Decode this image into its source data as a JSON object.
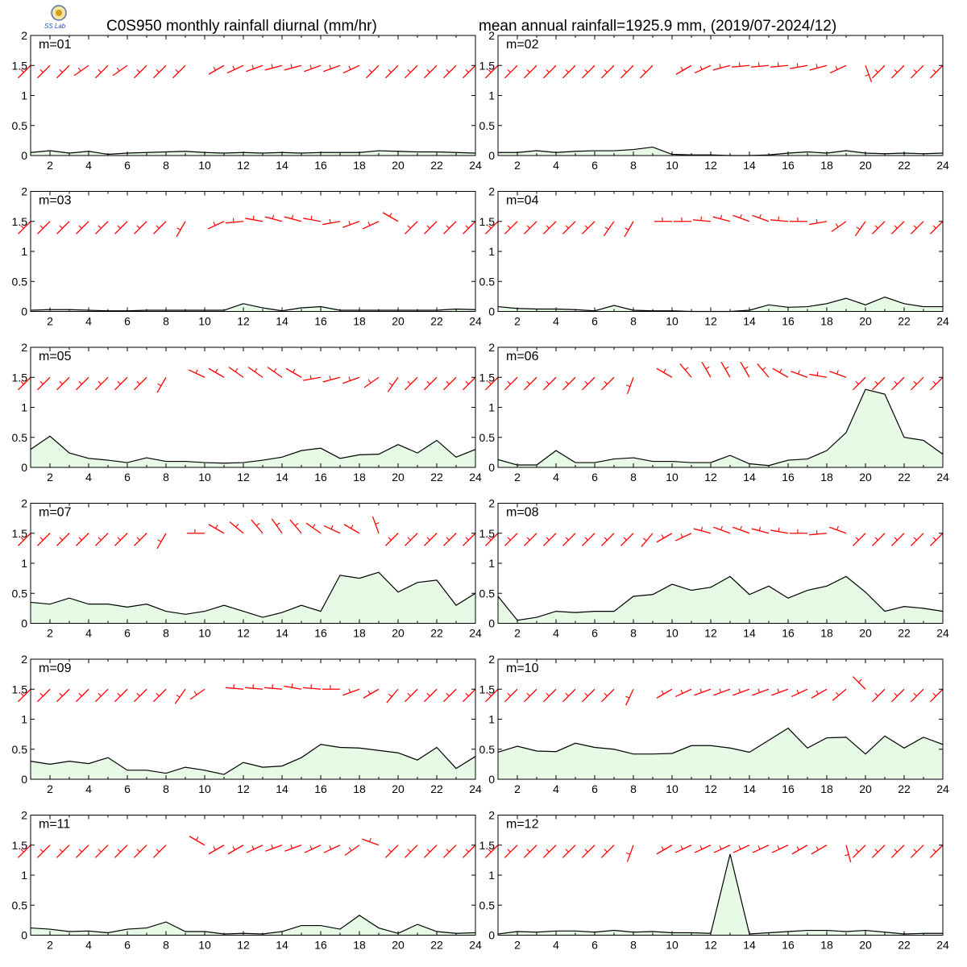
{
  "header": {
    "title_left": "C0S950 monthly rainfall diurnal (mm/hr)",
    "title_right": "mean annual rainfall=1925.9 mm, (2019/07-2024/12)"
  },
  "logo": {
    "text": "SS Lab"
  },
  "colors": {
    "fill": "#e6fae6",
    "line": "#000000",
    "barb": "#ff0000"
  },
  "chart_data": {
    "type": "area",
    "ylim": [
      0,
      2
    ],
    "xlim": [
      1,
      24
    ],
    "yticks": [
      "0",
      "0.5",
      "1",
      "1.5",
      "2"
    ],
    "xticks": [
      "2",
      "4",
      "6",
      "8",
      "10",
      "12",
      "14",
      "16",
      "18",
      "20",
      "22",
      "24"
    ],
    "barb_level": 1.5,
    "panels": [
      {
        "label": "m=01",
        "values": [
          0.05,
          0.08,
          0.04,
          0.07,
          0.02,
          0.04,
          0.05,
          0.06,
          0.07,
          0.05,
          0.04,
          0.05,
          0.04,
          0.05,
          0.04,
          0.05,
          0.05,
          0.05,
          0.08,
          0.07,
          0.06,
          0.06,
          0.05,
          0.04
        ],
        "wind_dir": [
          225,
          225,
          225,
          235,
          225,
          235,
          225,
          225,
          225,
          null,
          240,
          245,
          250,
          255,
          255,
          250,
          250,
          245,
          225,
          225,
          225,
          225,
          225,
          225
        ]
      },
      {
        "label": "m=02",
        "values": [
          0.05,
          0.05,
          0.08,
          0.05,
          0.07,
          0.08,
          0.08,
          0.1,
          0.14,
          0.02,
          0.01,
          0.01,
          0.0,
          0.0,
          0.01,
          0.04,
          0.06,
          0.04,
          0.08,
          0.04,
          0.03,
          0.04,
          0.03,
          0.04
        ],
        "wind_dir": [
          225,
          225,
          225,
          225,
          225,
          225,
          225,
          225,
          225,
          null,
          240,
          245,
          255,
          265,
          265,
          265,
          260,
          255,
          245,
          160,
          225,
          225,
          225,
          225
        ]
      },
      {
        "label": "m=03",
        "values": [
          0.02,
          0.03,
          0.03,
          0.02,
          0.01,
          0.01,
          0.02,
          0.02,
          0.02,
          0.02,
          0.02,
          0.13,
          0.06,
          0.01,
          0.06,
          0.08,
          0.02,
          0.02,
          0.02,
          0.02,
          0.02,
          0.02,
          0.04,
          0.03
        ],
        "wind_dir": [
          225,
          225,
          225,
          225,
          225,
          225,
          225,
          225,
          210,
          null,
          245,
          265,
          280,
          285,
          285,
          280,
          260,
          250,
          245,
          300,
          225,
          225,
          225,
          225
        ]
      },
      {
        "label": "m=04",
        "values": [
          0.08,
          0.05,
          0.04,
          0.04,
          0.03,
          0.01,
          0.1,
          0.02,
          0.01,
          0.01,
          0.0,
          0.0,
          0.0,
          0.02,
          0.11,
          0.07,
          0.08,
          0.13,
          0.22,
          0.11,
          0.24,
          0.13,
          0.08,
          0.08
        ],
        "wind_dir": [
          225,
          225,
          225,
          225,
          225,
          225,
          215,
          210,
          null,
          270,
          270,
          275,
          285,
          290,
          290,
          275,
          270,
          260,
          235,
          215,
          225,
          225,
          225,
          225
        ]
      },
      {
        "label": "m=05",
        "values": [
          0.3,
          0.52,
          0.24,
          0.15,
          0.12,
          0.08,
          0.16,
          0.1,
          0.1,
          0.08,
          0.07,
          0.08,
          0.12,
          0.17,
          0.28,
          0.32,
          0.15,
          0.21,
          0.22,
          0.38,
          0.24,
          0.45,
          0.17,
          0.3
        ],
        "wind_dir": [
          225,
          225,
          225,
          225,
          225,
          225,
          225,
          210,
          null,
          295,
          300,
          305,
          305,
          305,
          300,
          260,
          255,
          250,
          235,
          215,
          225,
          225,
          225,
          225
        ]
      },
      {
        "label": "m=06",
        "values": [
          0.13,
          0.04,
          0.04,
          0.28,
          0.08,
          0.08,
          0.14,
          0.16,
          0.1,
          0.1,
          0.08,
          0.08,
          0.2,
          0.06,
          0.03,
          0.12,
          0.14,
          0.28,
          0.58,
          1.3,
          1.22,
          0.5,
          0.45,
          0.22
        ],
        "wind_dir": [
          225,
          225,
          225,
          225,
          225,
          225,
          225,
          200,
          null,
          300,
          320,
          330,
          330,
          330,
          320,
          300,
          290,
          280,
          290,
          225,
          225,
          225,
          225,
          225
        ]
      },
      {
        "label": "m=07",
        "values": [
          0.35,
          0.32,
          0.42,
          0.32,
          0.32,
          0.27,
          0.32,
          0.2,
          0.15,
          0.2,
          0.3,
          0.2,
          0.1,
          0.18,
          0.3,
          0.2,
          0.8,
          0.75,
          0.85,
          0.52,
          0.68,
          0.72,
          0.3,
          0.5
        ],
        "wind_dir": [
          225,
          225,
          225,
          225,
          225,
          225,
          225,
          210,
          null,
          270,
          300,
          310,
          320,
          325,
          320,
          305,
          295,
          300,
          340,
          225,
          225,
          225,
          225,
          225
        ]
      },
      {
        "label": "m=08",
        "values": [
          0.45,
          0.05,
          0.1,
          0.2,
          0.18,
          0.2,
          0.2,
          0.45,
          0.48,
          0.65,
          0.55,
          0.6,
          0.78,
          0.48,
          0.62,
          0.42,
          0.55,
          0.62,
          0.78,
          0.52,
          0.2,
          0.28,
          0.25,
          0.2
        ],
        "wind_dir": [
          225,
          225,
          225,
          225,
          225,
          225,
          225,
          225,
          220,
          240,
          245,
          285,
          290,
          290,
          285,
          280,
          270,
          265,
          290,
          225,
          225,
          225,
          225,
          225
        ]
      },
      {
        "label": "m=09",
        "values": [
          0.3,
          0.25,
          0.3,
          0.26,
          0.36,
          0.15,
          0.15,
          0.1,
          0.2,
          0.15,
          0.08,
          0.28,
          0.2,
          0.22,
          0.36,
          0.58,
          0.53,
          0.52,
          0.48,
          0.44,
          0.32,
          0.53,
          0.18,
          0.38
        ],
        "wind_dir": [
          225,
          225,
          225,
          225,
          225,
          225,
          225,
          225,
          215,
          235,
          null,
          275,
          275,
          275,
          280,
          275,
          270,
          250,
          240,
          220,
          225,
          225,
          225,
          225
        ]
      },
      {
        "label": "m=10",
        "values": [
          0.45,
          0.55,
          0.47,
          0.46,
          0.6,
          0.53,
          0.5,
          0.42,
          0.42,
          0.43,
          0.56,
          0.56,
          0.52,
          0.45,
          0.65,
          0.85,
          0.52,
          0.69,
          0.7,
          0.42,
          0.72,
          0.52,
          0.7,
          0.58
        ],
        "wind_dir": [
          225,
          225,
          225,
          225,
          225,
          225,
          225,
          205,
          null,
          240,
          245,
          250,
          250,
          250,
          250,
          250,
          245,
          240,
          230,
          315,
          225,
          225,
          225,
          225
        ]
      },
      {
        "label": "m=11",
        "values": [
          0.12,
          0.1,
          0.06,
          0.07,
          0.04,
          0.1,
          0.12,
          0.22,
          0.06,
          0.06,
          0.02,
          0.03,
          0.02,
          0.06,
          0.16,
          0.16,
          0.1,
          0.33,
          0.12,
          0.03,
          0.18,
          0.06,
          0.03,
          0.04
        ],
        "wind_dir": [
          225,
          225,
          225,
          225,
          225,
          225,
          225,
          225,
          null,
          300,
          240,
          240,
          245,
          250,
          250,
          245,
          245,
          235,
          290,
          225,
          225,
          225,
          225,
          225
        ]
      },
      {
        "label": "m=12",
        "values": [
          0.02,
          0.06,
          0.05,
          0.07,
          0.07,
          0.05,
          0.08,
          0.05,
          0.06,
          0.04,
          0.04,
          0.03,
          1.35,
          0.02,
          0.04,
          0.06,
          0.08,
          0.08,
          0.06,
          0.08,
          0.05,
          0.02,
          0.03,
          0.03
        ],
        "wind_dir": [
          225,
          225,
          225,
          225,
          225,
          225,
          225,
          200,
          null,
          240,
          245,
          245,
          245,
          245,
          245,
          245,
          240,
          240,
          165,
          225,
          225,
          225,
          225,
          225
        ]
      }
    ]
  }
}
